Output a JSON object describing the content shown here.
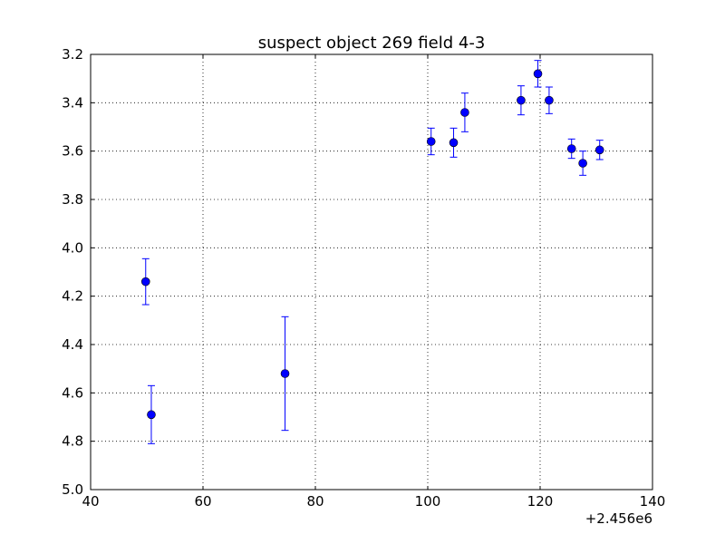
{
  "chart_data": {
    "type": "scatter",
    "title": "suspect object 269 field 4-3",
    "xlabel": "",
    "ylabel": "",
    "x_offset_label": "+2.456e6",
    "xlim": [
      40,
      140
    ],
    "ylim": [
      3.2,
      5.0
    ],
    "y_inverted": true,
    "grid": true,
    "x_ticks": [
      40,
      60,
      80,
      100,
      120,
      140
    ],
    "x_tick_labels": [
      "40",
      "60",
      "80",
      "100",
      "120",
      "140"
    ],
    "y_ticks": [
      3.2,
      3.4,
      3.6,
      3.8,
      4.0,
      4.2,
      4.4,
      4.6,
      4.8,
      5.0
    ],
    "y_tick_labels": [
      "3.2",
      "3.4",
      "3.6",
      "3.8",
      "4.0",
      "4.2",
      "4.4",
      "4.6",
      "4.8",
      "5.0"
    ],
    "marker_color": "#0000ff",
    "series": [
      {
        "points": [
          {
            "x": 49.8,
            "y": 4.14,
            "err": 0.095
          },
          {
            "x": 50.8,
            "y": 4.69,
            "err": 0.12
          },
          {
            "x": 74.6,
            "y": 4.52,
            "err": 0.235
          },
          {
            "x": 100.6,
            "y": 3.56,
            "err": 0.055
          },
          {
            "x": 104.6,
            "y": 3.565,
            "err": 0.06
          },
          {
            "x": 106.6,
            "y": 3.44,
            "err": 0.08
          },
          {
            "x": 116.6,
            "y": 3.39,
            "err": 0.06
          },
          {
            "x": 119.6,
            "y": 3.28,
            "err": 0.055
          },
          {
            "x": 121.6,
            "y": 3.39,
            "err": 0.055
          },
          {
            "x": 125.6,
            "y": 3.59,
            "err": 0.04
          },
          {
            "x": 127.6,
            "y": 3.65,
            "err": 0.05
          },
          {
            "x": 130.6,
            "y": 3.595,
            "err": 0.04
          }
        ]
      }
    ]
  }
}
